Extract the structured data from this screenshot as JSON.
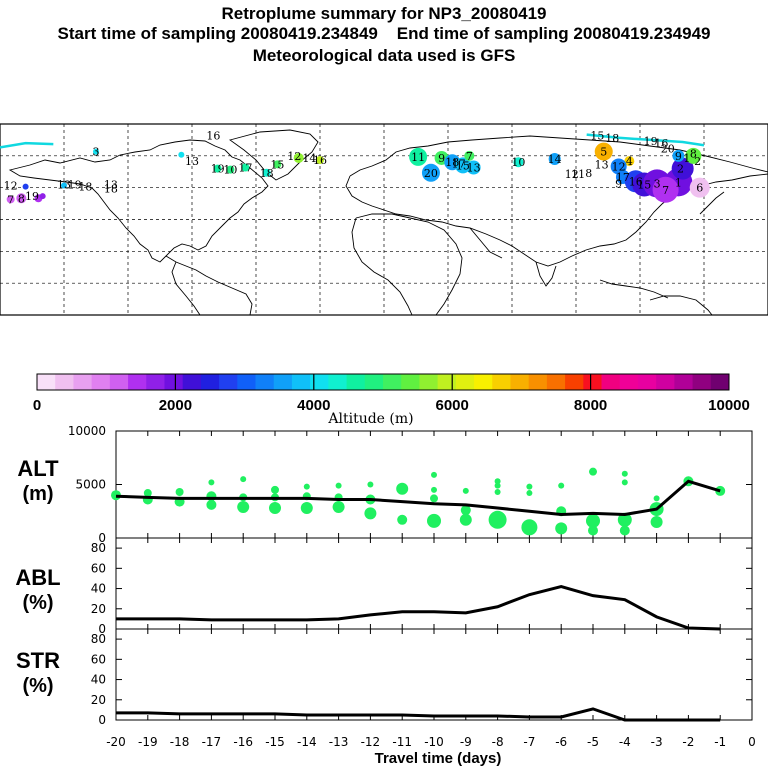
{
  "header": {
    "title": "Retroplume summary for NP3_20080419",
    "subtitle_start": "Start time of sampling 20080419.234849",
    "subtitle_end": "End time of sampling 20080419.234949",
    "subtitle_met": "Meteorological data used is GFS"
  },
  "colorbar": {
    "label": "Altitude (m)",
    "tick_labels": [
      "0",
      "2000",
      "4000",
      "6000",
      "8000",
      "10000"
    ],
    "ticks": [
      0,
      2000,
      4000,
      6000,
      8000,
      10000
    ],
    "range": [
      0,
      10000
    ],
    "colors": [
      "#f8e0f8",
      "#f0c0f0",
      "#e8a0f0",
      "#e080f0",
      "#d060f0",
      "#b030f0",
      "#9020e8",
      "#7010e0",
      "#4010d8",
      "#2020e0",
      "#2040f0",
      "#1060f8",
      "#1080f8",
      "#10a0f8",
      "#10c0f8",
      "#10e0f0",
      "#10f0d0",
      "#10f0a0",
      "#20f080",
      "#40f060",
      "#60f040",
      "#90f030",
      "#c0f020",
      "#e0f010",
      "#f8f000",
      "#f8d000",
      "#f8b000",
      "#f89000",
      "#f87000",
      "#f84000",
      "#f81020",
      "#f00080",
      "#f00098",
      "#e800a0",
      "#d000a0",
      "#b00098",
      "#900080",
      "#700070"
    ]
  },
  "map": {
    "labels": [
      {
        "lon": 16,
        "lat": 59,
        "n": "11"
      },
      {
        "lon": 27,
        "lat": 58,
        "n": "9"
      },
      {
        "lon": 32,
        "lat": 54,
        "n": "18"
      },
      {
        "lon": 35,
        "lat": 53,
        "n": "17"
      },
      {
        "lon": 37,
        "lat": 51,
        "n": "15"
      },
      {
        "lon": 42,
        "lat": 49,
        "n": "13"
      },
      {
        "lon": 22,
        "lat": 44,
        "n": "20"
      },
      {
        "lon": 40,
        "lat": 60,
        "n": "7"
      },
      {
        "lon": 63,
        "lat": 54,
        "n": "10"
      },
      {
        "lon": 80,
        "lat": 57,
        "n": "14"
      },
      {
        "lon": 88,
        "lat": 43,
        "n": "12"
      },
      {
        "lon": 91,
        "lat": 43,
        "n": "11"
      },
      {
        "lon": 96,
        "lat": 44,
        "n": "8"
      },
      {
        "lon": 102,
        "lat": 52,
        "n": "13"
      },
      {
        "lon": 110,
        "lat": 50,
        "n": "12"
      },
      {
        "lon": 103,
        "lat": 64,
        "n": "5"
      },
      {
        "lon": 115,
        "lat": 55,
        "n": "4"
      },
      {
        "lon": 112,
        "lat": 40,
        "n": "17"
      },
      {
        "lon": 110,
        "lat": 34,
        "n": "9"
      },
      {
        "lon": 118,
        "lat": 36,
        "n": "16"
      },
      {
        "lon": 122,
        "lat": 33,
        "n": "15"
      },
      {
        "lon": 128,
        "lat": 34,
        "n": "3"
      },
      {
        "lon": 138,
        "lat": 35,
        "n": "1"
      },
      {
        "lon": 132,
        "lat": 28,
        "n": "7"
      },
      {
        "lon": 148,
        "lat": 30,
        "n": "6"
      },
      {
        "lon": 139,
        "lat": 48,
        "n": "2"
      },
      {
        "lon": 138,
        "lat": 60,
        "n": "9"
      },
      {
        "lon": 133,
        "lat": 67,
        "n": "20"
      },
      {
        "lon": 142,
        "lat": 58,
        "n": "1"
      },
      {
        "lon": 145,
        "lat": 62,
        "n": "8"
      },
      {
        "lon": 147,
        "lat": 55,
        "n": "2"
      },
      {
        "lon": -135,
        "lat": 64,
        "n": "3"
      },
      {
        "lon": -90,
        "lat": 55,
        "n": "13"
      },
      {
        "lon": -78,
        "lat": 48,
        "n": "19"
      },
      {
        "lon": -72,
        "lat": 47,
        "n": "10"
      },
      {
        "lon": -65,
        "lat": 49,
        "n": "17"
      },
      {
        "lon": -55,
        "lat": 44,
        "n": "18"
      },
      {
        "lon": -50,
        "lat": 52,
        "n": "15"
      },
      {
        "lon": -30,
        "lat": 56,
        "n": "16"
      },
      {
        "lon": -35,
        "lat": 58,
        "n": "14"
      },
      {
        "lon": -42,
        "lat": 60,
        "n": "12"
      },
      {
        "lon": -175,
        "lat": 32,
        "n": "12"
      },
      {
        "lon": -170,
        "lat": 20,
        "n": "8"
      },
      {
        "lon": -165,
        "lat": 22,
        "n": "19"
      },
      {
        "lon": -150,
        "lat": 33,
        "n": "13"
      },
      {
        "lon": -145,
        "lat": 33,
        "n": "19"
      },
      {
        "lon": -140,
        "lat": 31,
        "n": "18"
      },
      {
        "lon": -128,
        "lat": 33,
        "n": "13"
      },
      {
        "lon": -128,
        "lat": 29,
        "n": "18"
      },
      {
        "lon": -175,
        "lat": 19,
        "n": "7"
      },
      {
        "lon": -80,
        "lat": 79,
        "n": "16"
      },
      {
        "lon": 100,
        "lat": 79,
        "n": "15"
      },
      {
        "lon": 107,
        "lat": 77,
        "n": "18"
      },
      {
        "lon": 125,
        "lat": 74,
        "n": "19"
      },
      {
        "lon": 130,
        "lat": 72,
        "n": "16"
      }
    ],
    "markers": [
      {
        "lon": 16,
        "lat": 59,
        "alt": 4600,
        "s": 9
      },
      {
        "lon": 27,
        "lat": 58,
        "alt": 5200,
        "s": 7
      },
      {
        "lon": 32,
        "lat": 54,
        "alt": 3600,
        "s": 8
      },
      {
        "lon": 37,
        "lat": 51,
        "alt": 3700,
        "s": 8
      },
      {
        "lon": 42,
        "lat": 49,
        "alt": 3800,
        "s": 7
      },
      {
        "lon": 22,
        "lat": 44,
        "alt": 3500,
        "s": 9
      },
      {
        "lon": 40,
        "lat": 60,
        "alt": 5000,
        "s": 5
      },
      {
        "lon": 63,
        "lat": 54,
        "alt": 4300,
        "s": 5
      },
      {
        "lon": 80,
        "lat": 57,
        "alt": 3600,
        "s": 6
      },
      {
        "lon": 103,
        "lat": 64,
        "alt": 7100,
        "s": 9
      },
      {
        "lon": 115,
        "lat": 55,
        "alt": 6800,
        "s": 5
      },
      {
        "lon": 110,
        "lat": 50,
        "alt": 3300,
        "s": 8
      },
      {
        "lon": 112,
        "lat": 40,
        "alt": 3200,
        "s": 7
      },
      {
        "lon": 118,
        "lat": 36,
        "alt": 2700,
        "s": 11
      },
      {
        "lon": 122,
        "lat": 33,
        "alt": 2300,
        "s": 12
      },
      {
        "lon": 128,
        "lat": 34,
        "alt": 2000,
        "s": 14
      },
      {
        "lon": 138,
        "lat": 35,
        "alt": 1900,
        "s": 14
      },
      {
        "lon": 132,
        "lat": 28,
        "alt": 1500,
        "s": 13
      },
      {
        "lon": 148,
        "lat": 30,
        "alt": 400,
        "s": 10
      },
      {
        "lon": 140,
        "lat": 48,
        "alt": 2300,
        "s": 11
      },
      {
        "lon": 138,
        "lat": 60,
        "alt": 3600,
        "s": 6
      },
      {
        "lon": 145,
        "lat": 60,
        "alt": 5300,
        "s": 8
      },
      {
        "lon": -170,
        "lat": 20,
        "alt": 1200,
        "s": 5
      },
      {
        "lon": -175,
        "lat": 19,
        "alt": 1300,
        "s": 4
      },
      {
        "lon": -162,
        "lat": 20,
        "alt": 1400,
        "s": 4
      },
      {
        "lon": -160,
        "lat": 22,
        "alt": 1600,
        "s": 3
      },
      {
        "lon": -168,
        "lat": 31,
        "alt": 2800,
        "s": 3
      },
      {
        "lon": -150,
        "lat": 32,
        "alt": 3800,
        "s": 3
      },
      {
        "lon": -78,
        "lat": 48,
        "alt": 4700,
        "s": 4
      },
      {
        "lon": -72,
        "lat": 47,
        "alt": 4800,
        "s": 4
      },
      {
        "lon": -65,
        "lat": 49,
        "alt": 4500,
        "s": 4
      },
      {
        "lon": -55,
        "lat": 44,
        "alt": 4300,
        "s": 4
      },
      {
        "lon": -50,
        "lat": 52,
        "alt": 5000,
        "s": 4
      },
      {
        "lon": -40,
        "lat": 58,
        "alt": 5600,
        "s": 5
      },
      {
        "lon": -30,
        "lat": 56,
        "alt": 5900,
        "s": 4
      },
      {
        "lon": -135,
        "lat": 64,
        "alt": 4000,
        "s": 3
      },
      {
        "lon": -95,
        "lat": 61,
        "alt": 4200,
        "s": 3
      }
    ],
    "trajectory": [
      {
        "lon": -180,
        "lat": 68
      },
      {
        "lon": -168,
        "lat": 72
      },
      {
        "lon": -155,
        "lat": 71
      }
    ],
    "trajectory2": [
      {
        "lon": 95,
        "lat": 80
      },
      {
        "lon": 110,
        "lat": 77
      },
      {
        "lon": 125,
        "lat": 75
      },
      {
        "lon": 140,
        "lat": 73
      },
      {
        "lon": 150,
        "lat": 70
      }
    ]
  },
  "panels": {
    "alt": {
      "label_line1": "ALT",
      "label_line2": "(m)",
      "ytick_labels": [
        "10000",
        "5000",
        "0"
      ],
      "ylim": [
        0,
        10000
      ]
    },
    "abl": {
      "label_line1": "ABL",
      "label_line2": "(%)",
      "ytick_labels": [
        "80",
        "60",
        "40",
        "20",
        "0"
      ],
      "ylim": [
        0,
        90
      ]
    },
    "str": {
      "label_line1": "STR",
      "label_line2": "(%)",
      "ytick_labels": [
        "80",
        "60",
        "40",
        "20",
        "0"
      ],
      "ylim": [
        0,
        90
      ]
    },
    "xlabel": "Travel time (days)",
    "xtick_labels": [
      "-20",
      "-19",
      "-18",
      "-17",
      "-16",
      "-15",
      "-14",
      "-13",
      "-12",
      "-11",
      "-10",
      "-9",
      "-8",
      "-7",
      "-6",
      "-5",
      "-4",
      "-3",
      "-2",
      "-1",
      "0"
    ]
  },
  "chart_data": [
    {
      "type": "line",
      "title": "ALT (m)",
      "xlabel": "Travel time (days)",
      "ylabel": "ALT (m)",
      "ylim": [
        0,
        10000
      ],
      "series": [
        {
          "name": "mean altitude",
          "x": [
            -20,
            -19,
            -18,
            -17,
            -16,
            -15,
            -14,
            -13,
            -12,
            -11,
            -10,
            -9,
            -8,
            -7,
            -6,
            -5,
            -4,
            -3,
            -2,
            -1
          ],
          "values": [
            3900,
            3800,
            3700,
            3700,
            3700,
            3700,
            3700,
            3600,
            3600,
            3400,
            3200,
            3100,
            2800,
            2500,
            2200,
            2300,
            2200,
            2700,
            5300,
            4400
          ]
        }
      ],
      "scatter": [
        {
          "x": -20,
          "y": 4000,
          "r": 5
        },
        {
          "x": -19,
          "y": 3600,
          "r": 5
        },
        {
          "x": -19,
          "y": 4200,
          "r": 4
        },
        {
          "x": -18,
          "y": 3400,
          "r": 5
        },
        {
          "x": -18,
          "y": 4300,
          "r": 4
        },
        {
          "x": -17,
          "y": 3100,
          "r": 5
        },
        {
          "x": -17,
          "y": 3900,
          "r": 5
        },
        {
          "x": -17,
          "y": 5200,
          "r": 3
        },
        {
          "x": -16,
          "y": 2900,
          "r": 6
        },
        {
          "x": -16,
          "y": 3800,
          "r": 4
        },
        {
          "x": -16,
          "y": 5500,
          "r": 3
        },
        {
          "x": -15,
          "y": 2800,
          "r": 6
        },
        {
          "x": -15,
          "y": 3800,
          "r": 4
        },
        {
          "x": -15,
          "y": 4500,
          "r": 4
        },
        {
          "x": -14,
          "y": 2800,
          "r": 6
        },
        {
          "x": -14,
          "y": 3900,
          "r": 4
        },
        {
          "x": -14,
          "y": 4800,
          "r": 3
        },
        {
          "x": -13,
          "y": 2900,
          "r": 6
        },
        {
          "x": -13,
          "y": 3800,
          "r": 4
        },
        {
          "x": -13,
          "y": 4900,
          "r": 3
        },
        {
          "x": -12,
          "y": 2300,
          "r": 6
        },
        {
          "x": -12,
          "y": 3600,
          "r": 5
        },
        {
          "x": -12,
          "y": 5000,
          "r": 3
        },
        {
          "x": -11,
          "y": 1700,
          "r": 5
        },
        {
          "x": -11,
          "y": 4600,
          "r": 6
        },
        {
          "x": -10,
          "y": 1600,
          "r": 7
        },
        {
          "x": -10,
          "y": 3700,
          "r": 4
        },
        {
          "x": -10,
          "y": 4500,
          "r": 3
        },
        {
          "x": -10,
          "y": 5900,
          "r": 3
        },
        {
          "x": -9,
          "y": 1700,
          "r": 6
        },
        {
          "x": -9,
          "y": 2600,
          "r": 5
        },
        {
          "x": -9,
          "y": 4400,
          "r": 3
        },
        {
          "x": -8,
          "y": 1700,
          "r": 9
        },
        {
          "x": -8,
          "y": 4300,
          "r": 3
        },
        {
          "x": -8,
          "y": 4900,
          "r": 3
        },
        {
          "x": -8,
          "y": 5300,
          "r": 3
        },
        {
          "x": -7,
          "y": 1000,
          "r": 8
        },
        {
          "x": -7,
          "y": 4200,
          "r": 3
        },
        {
          "x": -7,
          "y": 4800,
          "r": 3
        },
        {
          "x": -6,
          "y": 900,
          "r": 6
        },
        {
          "x": -6,
          "y": 2500,
          "r": 5
        },
        {
          "x": -6,
          "y": 4900,
          "r": 3
        },
        {
          "x": -5,
          "y": 700,
          "r": 5
        },
        {
          "x": -5,
          "y": 1600,
          "r": 7
        },
        {
          "x": -5,
          "y": 6200,
          "r": 4
        },
        {
          "x": -4,
          "y": 700,
          "r": 5
        },
        {
          "x": -4,
          "y": 1700,
          "r": 7
        },
        {
          "x": -4,
          "y": 5200,
          "r": 3
        },
        {
          "x": -4,
          "y": 6000,
          "r": 3
        },
        {
          "x": -3,
          "y": 1500,
          "r": 6
        },
        {
          "x": -3,
          "y": 2700,
          "r": 7
        },
        {
          "x": -3,
          "y": 3700,
          "r": 3
        },
        {
          "x": -2,
          "y": 5300,
          "r": 5
        },
        {
          "x": -1,
          "y": 4400,
          "r": 5
        }
      ]
    },
    {
      "type": "line",
      "title": "ABL (%)",
      "xlabel": "Travel time (days)",
      "ylabel": "ABL (%)",
      "ylim": [
        0,
        90
      ],
      "series": [
        {
          "name": "ABL",
          "x": [
            -20,
            -19,
            -18,
            -17,
            -16,
            -15,
            -14,
            -13,
            -12,
            -11,
            -10,
            -9,
            -8,
            -7,
            -6,
            -5,
            -4,
            -3,
            -2,
            -1
          ],
          "values": [
            10,
            10,
            10,
            9,
            9,
            9,
            9,
            10,
            14,
            17,
            17,
            16,
            22,
            34,
            42,
            33,
            29,
            12,
            1,
            0
          ]
        }
      ]
    },
    {
      "type": "line",
      "title": "STR (%)",
      "xlabel": "Travel time (days)",
      "ylabel": "STR (%)",
      "ylim": [
        0,
        90
      ],
      "series": [
        {
          "name": "STR",
          "x": [
            -20,
            -19,
            -18,
            -17,
            -16,
            -15,
            -14,
            -13,
            -12,
            -11,
            -10,
            -9,
            -8,
            -7,
            -6,
            -5,
            -4,
            -3,
            -2,
            -1
          ],
          "values": [
            7,
            7,
            6,
            6,
            6,
            6,
            5,
            5,
            5,
            5,
            4,
            4,
            4,
            3,
            3,
            11,
            0,
            0,
            0,
            0
          ]
        }
      ]
    }
  ]
}
